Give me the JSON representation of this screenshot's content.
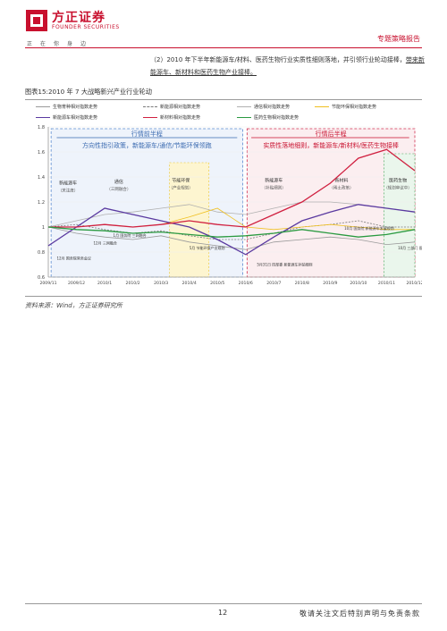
{
  "header": {
    "logo_cn": "方正证券",
    "logo_en": "FOUNDER SECURITIES",
    "motto": "正在你身边",
    "report_type": "专题策略报告"
  },
  "paragraph": {
    "part1": "（2）2010 年下半年新能源车/材料、医药生物行业实质性细则落地，并引领行业轮动接棒，",
    "part2": "带来新能源车、新材料和医药生物产业接棒。"
  },
  "figure": {
    "title": "图表15:2010 年 7 大战略新兴产业行业轮动",
    "source": "资料来源：Wind，方正证券研究所"
  },
  "legend": [
    {
      "label": "生物育种相对指数走势",
      "color": "#9a9a9a",
      "dashed": false
    },
    {
      "label": "新能源相对指数走势",
      "color": "#7a7a7a",
      "dashed": true
    },
    {
      "label": "通信相对指数走势",
      "color": "#b0b0b0",
      "dashed": false
    },
    {
      "label": "节能环保相对指数走势",
      "color": "#f0c020",
      "dashed": false
    },
    {
      "label": "新能源车相对指数走势",
      "color": "#5a3aa0",
      "dashed": false
    },
    {
      "label": "新材料相对指数走势",
      "color": "#d02040",
      "dashed": false
    },
    {
      "label": "医药生物相对指数走势",
      "color": "#2a9a40",
      "dashed": false
    }
  ],
  "chart_data": {
    "type": "line",
    "x": [
      "2009/11",
      "2009/12",
      "2010/1",
      "2010/2",
      "2010/3",
      "2010/4",
      "2010/5",
      "2010/6",
      "2010/7",
      "2010/8",
      "2010/9",
      "2010/10",
      "2010/11",
      "2010/12"
    ],
    "ylim": [
      0.6,
      1.8
    ],
    "yticks": [
      "0.6",
      "0.8",
      "1",
      "1.2",
      "1.4",
      "1.6",
      "1.8"
    ],
    "phases": [
      {
        "label": "行情前半程",
        "sub": "方向性指引政策，新能源车/通信/节能环保领跑",
        "color": "#3a6ab0"
      },
      {
        "label": "行情后半程",
        "sub": "实质性落地细则，新能源车/新材料/医药生物接棒",
        "color": "#c8102e"
      }
    ],
    "sector_boxes": [
      {
        "name": "新能源车",
        "sub": "（关注度）"
      },
      {
        "name": "通信",
        "sub": "（三网融合）"
      },
      {
        "name": "节能环保",
        "sub": "（产业规划）"
      },
      {
        "name": "新能源车",
        "sub": "（补贴细则）"
      },
      {
        "name": "新材料",
        "sub": "（稀土政策）"
      },
      {
        "name": "医药生物",
        "sub": "（规划审议中）"
      }
    ],
    "annotations": [
      "12月 国务院常务会议",
      "12月 三网融合",
      "1月 国务院 三网融合",
      "5月 节能环保产业规划",
      "5月31日 四部委 新能源车补贴细则",
      "10月 国务院 新能源车发展规划",
      "10月 三部门 医药生物产业规划"
    ],
    "series": [
      {
        "name": "生物育种相对指数走势",
        "values": [
          1.0,
          0.95,
          0.92,
          0.9,
          0.93,
          0.88,
          0.85,
          0.82,
          0.88,
          0.9,
          0.92,
          0.9,
          0.86,
          0.88
        ]
      },
      {
        "name": "新能源相对指数走势",
        "values": [
          1.0,
          1.02,
          0.98,
          0.95,
          0.97,
          0.93,
          0.9,
          0.9,
          0.95,
          1.0,
          1.02,
          1.05,
          1.0,
          1.0
        ]
      },
      {
        "name": "通信相对指数走势",
        "values": [
          1.0,
          1.05,
          1.1,
          1.12,
          1.15,
          1.18,
          1.12,
          1.1,
          1.15,
          1.2,
          1.2,
          1.18,
          1.15,
          1.12
        ]
      },
      {
        "name": "节能环保相对指数走势",
        "values": [
          1.0,
          1.0,
          1.02,
          1.0,
          1.02,
          1.08,
          1.15,
          1.0,
          0.98,
          1.0,
          1.02,
          1.0,
          0.98,
          0.98
        ]
      },
      {
        "name": "新能源车相对指数走势",
        "values": [
          0.85,
          1.0,
          1.15,
          1.1,
          1.05,
          1.0,
          0.9,
          0.78,
          0.92,
          1.05,
          1.12,
          1.18,
          1.15,
          1.12
        ]
      },
      {
        "name": "新材料相对指数走势",
        "values": [
          1.0,
          1.0,
          1.02,
          1.0,
          1.02,
          1.05,
          1.02,
          1.0,
          1.1,
          1.2,
          1.35,
          1.55,
          1.62,
          1.45
        ]
      },
      {
        "name": "医药生物相对指数走势",
        "values": [
          1.0,
          0.98,
          0.97,
          0.95,
          0.96,
          0.94,
          0.92,
          0.93,
          0.95,
          0.98,
          0.95,
          0.92,
          0.94,
          0.98
        ]
      }
    ]
  },
  "footer": {
    "page": "12",
    "disclaimer": "敬请关注文后特别声明与免责条款"
  }
}
